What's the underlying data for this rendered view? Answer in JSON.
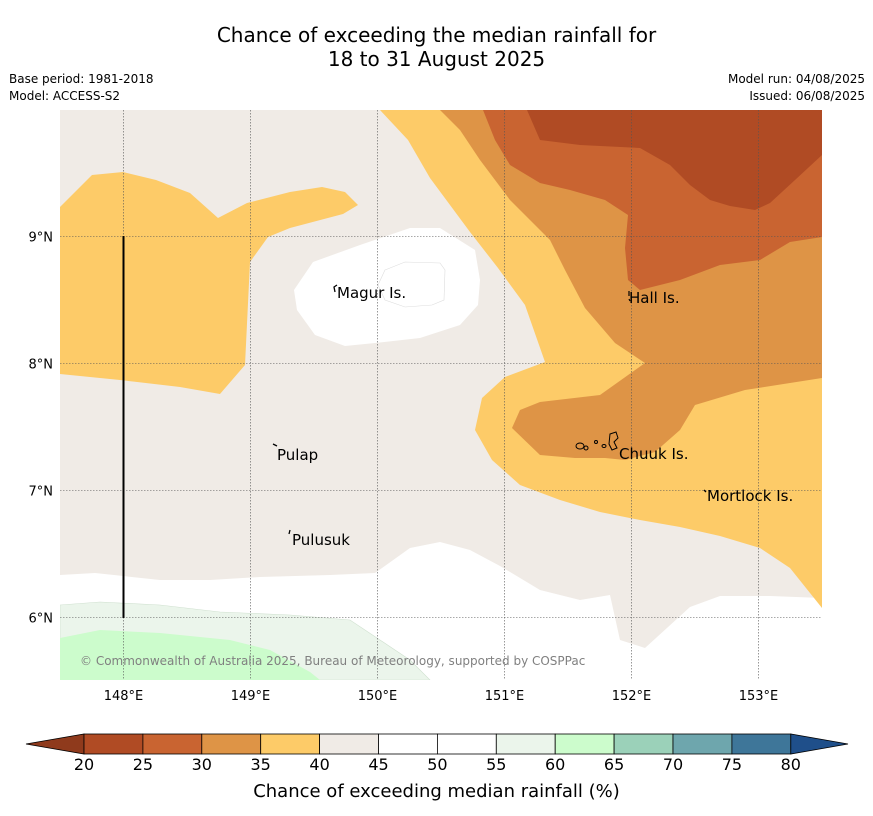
{
  "title_line1": "Chance of exceeding the median rainfall for",
  "title_line2": "18 to 31 August 2025",
  "meta_left": {
    "base_period": "Base period: 1981-2018",
    "model": "Model: ACCESS-S2"
  },
  "meta_right": {
    "model_run": "Model run: 04/08/2025",
    "issued": "Issued: 06/08/2025"
  },
  "map": {
    "lat_labels": [
      "9°N",
      "8°N",
      "7°N",
      "6°N"
    ],
    "lon_labels": [
      "148°E",
      "149°E",
      "150°E",
      "151°E",
      "152°E",
      "153°E"
    ],
    "places": {
      "magur": "Magur Is.",
      "hall": "Hall Is.",
      "pulap": "Pulap",
      "chuuk": "Chuuk Is.",
      "mortlock": "Mortlock Is.",
      "pulusuk": "Pulusuk"
    },
    "copyright": "© Commonwealth of Australia 2025, Bureau of Meteorology, supported by COSPPac",
    "contour_colors": {
      "20-25": "#b04b24",
      "25-30": "#c96431",
      "30-35": "#de9446",
      "35-40": "#fdcb68",
      "40-45": "#f0ebe6",
      "45-55": "#ffffff",
      "55-60": "#ebf5eb",
      "60-65": "#ccfccc"
    }
  },
  "colorbar": {
    "ticks": [
      "20",
      "25",
      "30",
      "35",
      "40",
      "45",
      "50",
      "55",
      "60",
      "65",
      "70",
      "75",
      "80"
    ],
    "colors": [
      "#b04b24",
      "#c96431",
      "#de9446",
      "#fdcb68",
      "#f0ebe6",
      "#ffffff",
      "#ffffff",
      "#ebf5eb",
      "#ccfccc",
      "#9bd1b9",
      "#6ea6ad",
      "#3e7699"
    ],
    "under_color": "#8f3a1c",
    "over_color": "#1f4f8a",
    "title": "Chance of exceeding median rainfall (%)"
  }
}
